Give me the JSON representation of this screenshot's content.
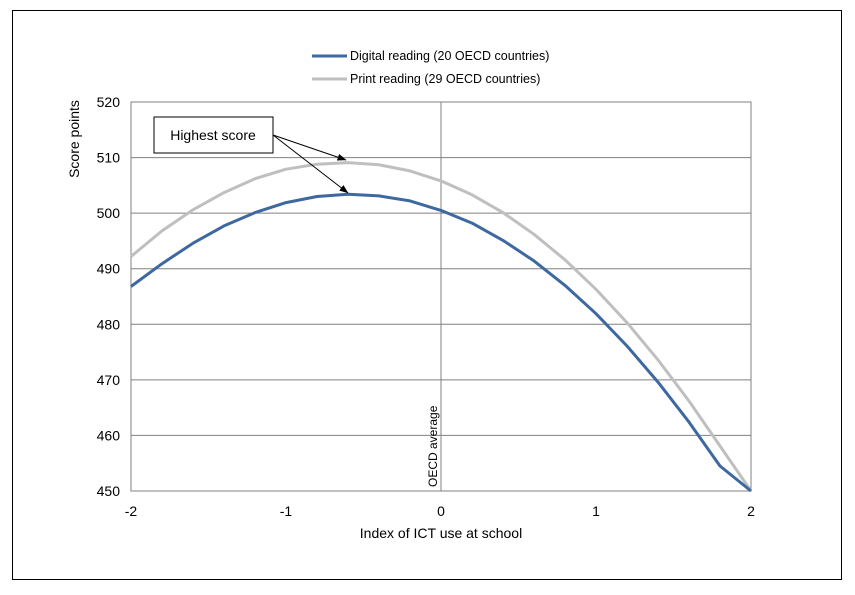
{
  "chart_data": {
    "type": "line",
    "title": "",
    "xlabel": "Index of ICT use at school",
    "ylabel": "Score points",
    "xlim": [
      -2,
      2
    ],
    "ylim": [
      450,
      520
    ],
    "x_ticks": [
      "-2",
      "-1",
      "0",
      "1",
      "2"
    ],
    "y_ticks": [
      "450",
      "460",
      "470",
      "480",
      "490",
      "500",
      "510",
      "520"
    ],
    "grid": true,
    "legend_position": "top",
    "reference_line": {
      "x": 0,
      "label": "OECD average"
    },
    "annotation": {
      "label": "Highest score"
    },
    "series": [
      {
        "name": "Digital reading (20  OECD  countries)",
        "color": "#3d68a0",
        "x": [
          -2.0,
          -1.8,
          -1.6,
          -1.4,
          -1.2,
          -1.0,
          -0.8,
          -0.6,
          -0.4,
          -0.2,
          0.0,
          0.2,
          0.4,
          0.6,
          0.8,
          1.0,
          1.2,
          1.4,
          1.6,
          1.8,
          2.0
        ],
        "y": [
          486.8,
          490.9,
          494.6,
          497.7,
          500.1,
          501.9,
          503.0,
          503.4,
          503.1,
          502.2,
          500.5,
          498.2,
          495.1,
          491.4,
          487.0,
          481.9,
          476.1,
          469.6,
          462.4,
          454.5,
          450.0
        ]
      },
      {
        "name": "Print reading (29 OECD countries)",
        "color": "#bfbfbf",
        "x": [
          -2.0,
          -1.8,
          -1.6,
          -1.4,
          -1.2,
          -1.0,
          -0.8,
          -0.6,
          -0.4,
          -0.2,
          0.0,
          0.2,
          0.4,
          0.6,
          0.8,
          1.0,
          1.2,
          1.4,
          1.6,
          1.8,
          2.0
        ],
        "y": [
          492.2,
          496.8,
          500.6,
          503.7,
          506.2,
          507.9,
          508.8,
          509.1,
          508.7,
          507.6,
          505.8,
          503.3,
          500.1,
          496.2,
          491.6,
          486.3,
          480.3,
          473.6,
          466.2,
          458.1,
          450.0
        ]
      }
    ]
  }
}
